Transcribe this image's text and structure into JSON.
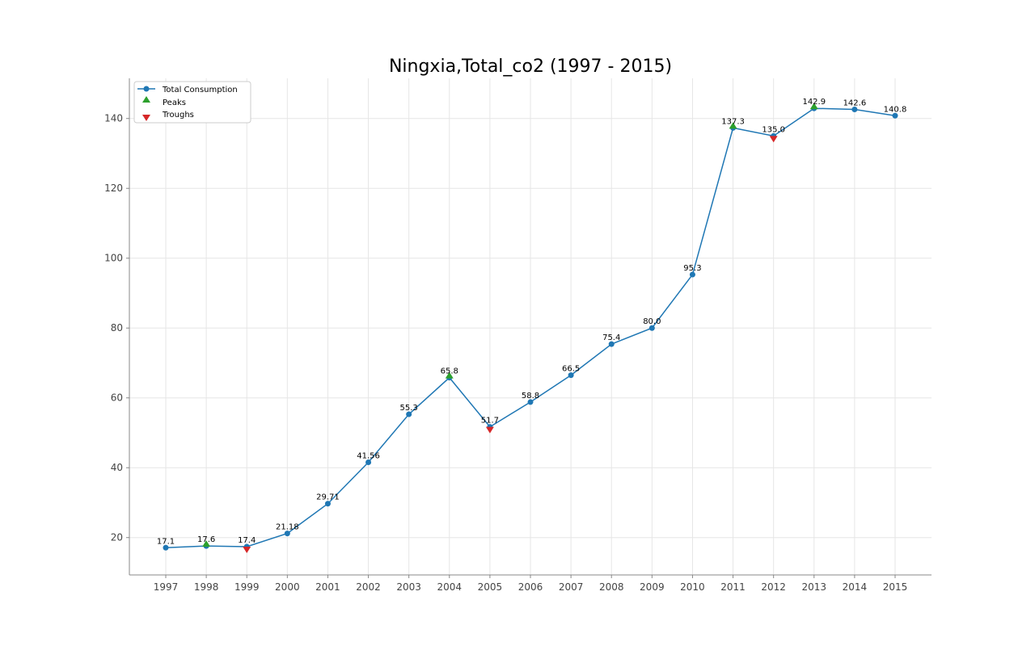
{
  "chart_data": {
    "type": "line",
    "title": "Ningxia,Total_co2 (1997 - 2015)",
    "xlabel": "",
    "ylabel": "",
    "x": [
      "1997",
      "1998",
      "1999",
      "2000",
      "2001",
      "2002",
      "2003",
      "2004",
      "2005",
      "2006",
      "2007",
      "2008",
      "2009",
      "2010",
      "2011",
      "2012",
      "2013",
      "2014",
      "2015"
    ],
    "series": [
      {
        "name": "Total Consumption",
        "values": [
          17.1,
          17.6,
          17.4,
          21.18,
          29.71,
          41.56,
          55.3,
          65.8,
          51.7,
          58.8,
          66.5,
          75.4,
          80.0,
          95.3,
          137.3,
          135.0,
          142.9,
          142.6,
          140.8
        ],
        "labels": [
          "17.1",
          "17.6",
          "17.4",
          "21.18",
          "29.71",
          "41.56",
          "55.3",
          "65.8",
          "51.7",
          "58.8",
          "66.5",
          "75.4",
          "80.0",
          "95.3",
          "137.3",
          "135.0",
          "142.9",
          "142.6",
          "140.8"
        ],
        "color": "#1f77b4"
      }
    ],
    "peaks": {
      "name": "Peaks",
      "x": [
        "1998",
        "2004",
        "2011",
        "2013"
      ],
      "values": [
        17.6,
        65.8,
        137.3,
        142.9
      ],
      "color": "#2ca02c"
    },
    "troughs": {
      "name": "Troughs",
      "x": [
        "1999",
        "2005",
        "2012"
      ],
      "values": [
        17.4,
        51.7,
        135.0
      ],
      "color": "#d62728"
    },
    "ylim": [
      9.3,
      151.5
    ],
    "yticks": [
      20,
      40,
      60,
      80,
      100,
      120,
      140
    ],
    "grid": true,
    "legend_position": "top-left"
  }
}
